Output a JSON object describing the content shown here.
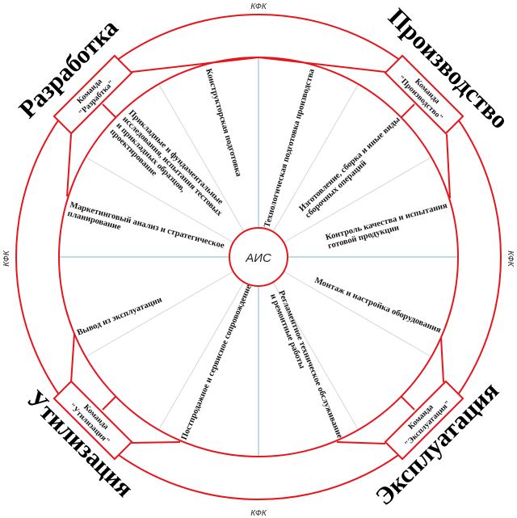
{
  "center_label": "АИС",
  "ring_label": "КФК",
  "colors": {
    "ring": "#e8141c",
    "axis": "#a9d3dc",
    "spoke": "#d6d6d6"
  },
  "phases": {
    "development": "Разработка",
    "production": "Производство",
    "utilization": "Утилизация",
    "operation": "Эксплуатация"
  },
  "teams": {
    "development": {
      "line1": "Команда",
      "line2": "\"Разрабтка\""
    },
    "production": {
      "line1": "Команда",
      "line2": "\"Производство\""
    },
    "utilization": {
      "line1": "Команда",
      "line2": "\"Утилизация\""
    },
    "operation": {
      "line1": "Команда",
      "line2": "\"Эксплуатация\""
    }
  },
  "sectors": {
    "design": [
      "Конструкторская подготовка"
    ],
    "research": [
      "Прикладные и фундаментальные",
      "исследования, испытания тестовых",
      "и прикладных образцов,",
      "проектирование"
    ],
    "marketing": [
      "Маркетинговый анализ и стратегическое",
      "планирование"
    ],
    "tech_prep": [
      "Технологическая подготовка производства"
    ],
    "manufacturing": [
      "Изготовление, сборка и иные виды",
      "сборочных операций"
    ],
    "quality": [
      "Контроль качества и испытания",
      "готовой продукции"
    ],
    "installation": [
      "Монтаж и настройка оборудования"
    ],
    "maintenance": [
      "Регламентное техническое обслуживание",
      "и ремонтные работы"
    ],
    "service": [
      "Постпродажное и сервисное сопровождение"
    ],
    "decommission": [
      "Вывод из эксплуатации"
    ]
  }
}
